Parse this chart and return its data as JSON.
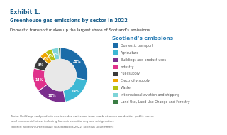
{
  "title_exhibit": "Exhibit 1.",
  "title_main": "Greenhouse gas emissions by sector in 2022",
  "title_sub": "Domestic transport makes up the largest share of Scotland’s emissions.",
  "chart_title": "Scotland’s emissions",
  "segments": [
    {
      "label": "Domestic transport",
      "value": 28,
      "color": "#1b6ca8"
    },
    {
      "label": "Agriculture",
      "value": 19,
      "color": "#3db8d4"
    },
    {
      "label": "Buildings and product uses",
      "value": 18,
      "color": "#7b2f8e"
    },
    {
      "label": "Industry",
      "value": 14,
      "color": "#e0328c"
    },
    {
      "label": "Fuel supply",
      "value": 8,
      "color": "#3a3a3a"
    },
    {
      "label": "Electricity supply",
      "value": 4,
      "color": "#f0a500"
    },
    {
      "label": "Waste",
      "value": 4,
      "color": "#b5c211"
    },
    {
      "label": "International aviation and shipping",
      "value": 4,
      "color": "#7dd4d8"
    },
    {
      "label": "Land Use, Land-Use Change and Forestry",
      "value": 1,
      "color": "#3a7d44"
    }
  ],
  "note": "Note: Buildings and product uses includes emissions from combustion on residential, public sector",
  "note2": "and commercial sites, including from air conditioning and refrigeration.",
  "source": "Source: Scottish Greenhouse Gas Statistics 2022, Scottish Government",
  "header_bg": "#d9edf7",
  "bg_color": "#ffffff",
  "exhibit_color": "#1b5e8a",
  "header_text_color": "#1b5e8a",
  "chart_title_color": "#2a7db5",
  "legend_text_color": "#555555",
  "note_color": "#666666"
}
